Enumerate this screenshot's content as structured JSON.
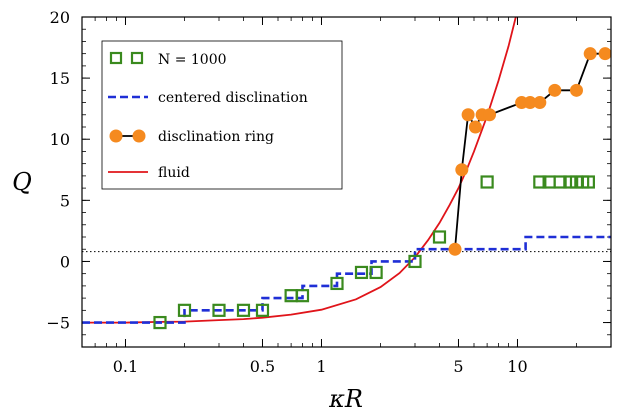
{
  "chart_data": {
    "type": "scatter",
    "xlabel": "κR",
    "ylabel": "Q",
    "xscale": "log",
    "xlim": [
      0.06,
      30
    ],
    "ylim": [
      -7,
      20
    ],
    "xticks": [
      {
        "value": 0.1,
        "label": "0.1"
      },
      {
        "value": 0.5,
        "label": "0.5"
      },
      {
        "value": 1,
        "label": "1"
      },
      {
        "value": 5,
        "label": "5"
      },
      {
        "value": 10,
        "label": "10"
      }
    ],
    "yticks": [
      {
        "value": -5,
        "label": "−5"
      },
      {
        "value": 0,
        "label": "0"
      },
      {
        "value": 5,
        "label": "5"
      },
      {
        "value": 10,
        "label": "10"
      },
      {
        "value": 15,
        "label": "15"
      },
      {
        "value": 20,
        "label": "20"
      }
    ],
    "legend_position": "top-left",
    "reference_line": {
      "y": 0.8,
      "style": "dotted",
      "color": "#000000"
    },
    "series": [
      {
        "name": "N = 1000",
        "legend_label": "N = 1000",
        "style": "open-square",
        "color": "#3a8a1e",
        "x": [
          0.15,
          0.2,
          0.3,
          0.4,
          0.5,
          0.7,
          0.8,
          1.2,
          1.6,
          1.9,
          3.0,
          4.0,
          7.0,
          13.0,
          14.5,
          16.5,
          18.5,
          20.0,
          21.5,
          23.0
        ],
        "y": [
          -5.0,
          -4.0,
          -4.0,
          -4.0,
          -4.0,
          -2.8,
          -2.8,
          -1.8,
          -0.9,
          -0.9,
          0.0,
          2.0,
          6.5,
          6.5,
          6.5,
          6.5,
          6.5,
          6.5,
          6.5,
          6.5
        ]
      },
      {
        "name": "centered disclination",
        "legend_label": "centered disclination",
        "style": "dashed-step",
        "color": "#1f2fd6",
        "x": [
          0.06,
          0.2,
          0.2,
          0.5,
          0.5,
          0.8,
          0.8,
          1.2,
          1.2,
          1.8,
          1.8,
          3.0,
          3.0,
          4.8,
          4.8,
          11.0,
          11.0,
          30.0
        ],
        "y": [
          -5.0,
          -5.0,
          -4.0,
          -4.0,
          -3.0,
          -3.0,
          -2.0,
          -2.0,
          -1.0,
          -1.0,
          0.0,
          0.0,
          1.0,
          1.0,
          1.0,
          1.0,
          2.0,
          2.0
        ]
      },
      {
        "name": "disclination ring",
        "legend_label": "disclination ring",
        "style": "line-circle",
        "color": "#f58a1f",
        "line_color": "#000000",
        "x": [
          4.8,
          5.2,
          5.6,
          6.1,
          6.6,
          7.2,
          10.5,
          11.6,
          13.0,
          15.5,
          20.0,
          23.5,
          28.0
        ],
        "y": [
          1.0,
          7.5,
          12.0,
          11.0,
          12.0,
          12.0,
          13.0,
          13.0,
          13.0,
          14.0,
          14.0,
          17.0,
          17.0
        ]
      },
      {
        "name": "fluid",
        "legend_label": "fluid",
        "style": "line",
        "color": "#e0141a",
        "x": [
          0.06,
          0.1,
          0.15,
          0.2,
          0.3,
          0.4,
          0.5,
          0.7,
          1.0,
          1.5,
          2.0,
          2.5,
          3.0,
          3.5,
          4.0,
          4.5,
          5.0,
          5.5,
          6.0,
          7.0,
          8.0,
          9.0,
          9.8
        ],
        "y": [
          -5.0,
          -5.0,
          -4.95,
          -4.92,
          -4.8,
          -4.72,
          -4.6,
          -4.35,
          -3.95,
          -3.1,
          -2.1,
          -0.95,
          0.35,
          1.75,
          3.15,
          4.6,
          6.0,
          7.5,
          9.0,
          11.9,
          14.8,
          17.6,
          20.0
        ]
      }
    ]
  }
}
